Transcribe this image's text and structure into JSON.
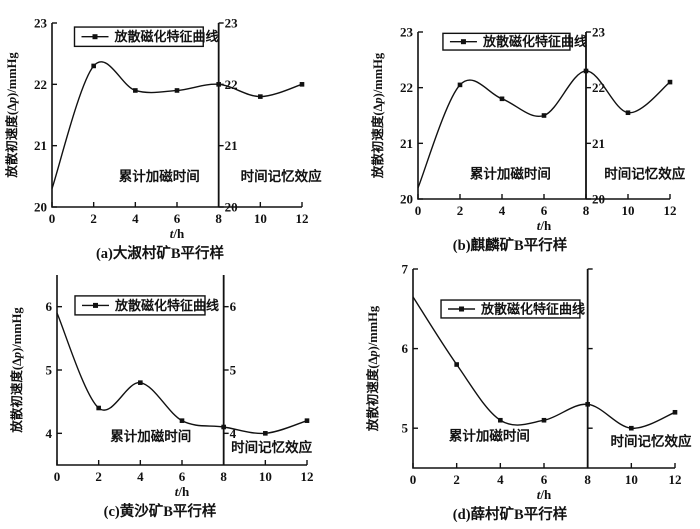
{
  "figure": {
    "background": "#ffffff",
    "ink": "#111111"
  },
  "shared": {
    "legend_label": "放散磁化特征曲线",
    "xlabel_italic": "t",
    "xlabel_rest": "/h",
    "ylabel_prefix": "放散初速度(Δ",
    "ylabel_italic": "p",
    "ylabel_suffix": ")/mmHg",
    "annotation_left": "累计加磁时间",
    "annotation_right": "时间记忆效应"
  },
  "chart_data": [
    {
      "id": "a",
      "type": "line",
      "caption": "(a)大淑村矿B平行样",
      "series": [
        {
          "name": "放散磁化特征曲线",
          "values": [
            20.3,
            22.3,
            21.9,
            21.9,
            22.0,
            21.8,
            22.0
          ]
        }
      ],
      "x": [
        0,
        2,
        4,
        6,
        8,
        10,
        12
      ],
      "xlabel": "t/h",
      "ylabel": "放散初速度(Δp)/mmHg",
      "xlim": [
        0,
        12
      ],
      "ylim": [
        20,
        23
      ],
      "xticks": [
        "0",
        "2",
        "4",
        "6",
        "8",
        "10",
        "12"
      ],
      "yticks": [
        20,
        21,
        22,
        23
      ],
      "ytick_labels": [
        "20",
        "21",
        "22",
        "23"
      ],
      "divider_x": 8,
      "divider_tick_labels": [
        "23",
        "22",
        "21",
        "20"
      ],
      "annotation_left_pos": [
        5.15,
        20.5
      ],
      "annotation_right_pos": [
        11.0,
        20.5
      ],
      "legend_box": {
        "x": 0.09,
        "y": 0.022,
        "w": 0.515,
        "h": 0.105
      },
      "grid": false,
      "legend_position": "top-left-inside"
    },
    {
      "id": "b",
      "type": "line",
      "caption": "(b)麒麟矿B平行样",
      "series": [
        {
          "name": "放散磁化特征曲线",
          "values": [
            20.2,
            22.05,
            21.8,
            21.5,
            22.3,
            21.55,
            22.1
          ]
        }
      ],
      "x": [
        0,
        2,
        4,
        6,
        8,
        10,
        12
      ],
      "xlabel": "t/h",
      "ylabel": "放散初速度(Δp)/mmHg",
      "xlim": [
        0,
        12
      ],
      "ylim": [
        20,
        23
      ],
      "xticks": [
        "0",
        "2",
        "4",
        "6",
        "8",
        "10",
        "12"
      ],
      "yticks": [
        20,
        21,
        22,
        23
      ],
      "ytick_labels": [
        "20",
        "21",
        "22",
        "23"
      ],
      "divider_x": 8,
      "divider_tick_labels": [
        "23",
        "22",
        "21",
        "20"
      ],
      "annotation_left_pos": [
        4.4,
        20.45
      ],
      "annotation_right_pos": [
        10.8,
        20.45
      ],
      "legend_box": {
        "x": 0.099,
        "y": 0.008,
        "w": 0.504,
        "h": 0.1
      },
      "grid": false,
      "legend_position": "top-left-inside"
    },
    {
      "id": "c",
      "type": "line",
      "caption": "(c)黄沙矿B平行样",
      "series": [
        {
          "name": "放散磁化特征曲线",
          "values": [
            5.9,
            4.4,
            4.8,
            4.2,
            4.1,
            4.0,
            4.2
          ]
        }
      ],
      "x": [
        0,
        2,
        4,
        6,
        8,
        10,
        12
      ],
      "xlabel": "t/h",
      "ylabel": "放散初速度(Δp)/mmHg",
      "xlim": [
        0,
        12
      ],
      "ylim": [
        3.5,
        6.5
      ],
      "xticks": [
        "0",
        "2",
        "4",
        "6",
        "8",
        "10",
        "12"
      ],
      "yticks": [
        4,
        5,
        6
      ],
      "ytick_labels": [
        "4",
        "5",
        "6"
      ],
      "divider_x": 8,
      "divider_tick_labels": [
        "6",
        "5",
        "4"
      ],
      "annotation_left_pos": [
        4.5,
        3.95
      ],
      "annotation_right_pos": [
        10.3,
        3.78
      ],
      "legend_box": {
        "x": 0.072,
        "y": 0.11,
        "w": 0.52,
        "h": 0.1
      },
      "grid": false,
      "legend_position": "top-left-inside"
    },
    {
      "id": "d",
      "type": "line",
      "caption": "(d)薛村矿B平行样",
      "series": [
        {
          "name": "放散磁化特征曲线",
          "values": [
            6.65,
            5.8,
            5.1,
            5.1,
            5.3,
            5.0,
            5.2
          ]
        }
      ],
      "x": [
        0,
        2,
        4,
        6,
        8,
        10,
        12
      ],
      "xlabel": "t/h",
      "ylabel": "放散初速度(Δp)/mmHg",
      "xlim": [
        0,
        12
      ],
      "ylim": [
        4.5,
        7
      ],
      "xticks": [
        "0",
        "2",
        "4",
        "6",
        "8",
        "10",
        "12"
      ],
      "yticks": [
        5,
        6,
        7
      ],
      "ytick_labels": [
        "5",
        "6",
        "7"
      ],
      "divider_x": 8,
      "divider_tick_labels": [],
      "annotation_left_pos": [
        3.5,
        4.9
      ],
      "annotation_right_pos": [
        10.9,
        4.83
      ],
      "legend_box": {
        "x": 0.107,
        "y": 0.156,
        "w": 0.53,
        "h": 0.09
      },
      "grid": false,
      "legend_position": "top-left-inside"
    }
  ]
}
